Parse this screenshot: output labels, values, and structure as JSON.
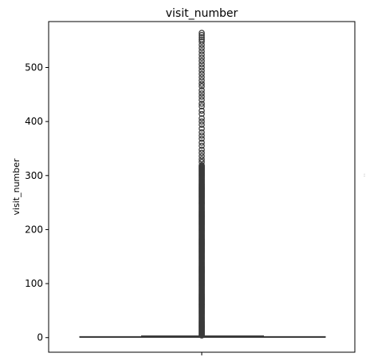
{
  "chart_data": {
    "type": "box",
    "title": "visit_number",
    "xlabel": "",
    "ylabel": "visit_number",
    "ylim": [
      -27,
      585
    ],
    "yticks": [
      0,
      100,
      200,
      300,
      400,
      500
    ],
    "grid": false,
    "legend": "none",
    "colors": {
      "box": "#3a3a3a",
      "axes": "#000000"
    },
    "box": {
      "min": 1,
      "q1": 1,
      "median": 1,
      "q3": 2,
      "whisker_high": 3,
      "outliers_dense_from": 4,
      "outliers_dense_to": 320,
      "outliers_sparse": [
        325,
        330,
        336,
        342,
        348,
        355,
        361,
        368,
        374,
        380,
        387,
        394,
        400,
        406,
        414,
        420,
        428,
        433,
        440,
        446,
        452,
        458,
        465,
        470,
        476,
        482,
        488,
        494,
        500,
        506,
        512,
        518,
        524,
        530,
        536,
        542,
        548,
        552,
        556,
        560,
        564
      ]
    }
  }
}
